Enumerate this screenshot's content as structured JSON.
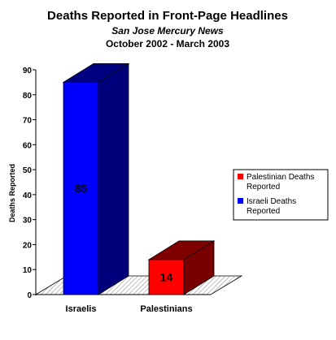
{
  "chart_data": {
    "type": "bar",
    "title": "Deaths Reported in Front-Page Headlines",
    "subtitle": "San Jose Mercury News",
    "date_range": "October 2002 - March 2003",
    "ylabel": "Deaths Reported",
    "xlabel": "",
    "ylim": [
      0,
      90
    ],
    "yticks": [
      0,
      10,
      20,
      30,
      40,
      50,
      60,
      70,
      80,
      90
    ],
    "categories": [
      "Israelis",
      "Palestinians"
    ],
    "values": [
      85,
      14
    ],
    "data_labels": [
      "85",
      "14"
    ],
    "bar_colors": [
      "#0000ff",
      "#ff0000"
    ],
    "legend": {
      "position": "right",
      "entries": [
        {
          "line1": "Palestinian Deaths",
          "line2": "Reported",
          "color": "#ff0000"
        },
        {
          "line1": "Israeli Deaths",
          "line2": "Reported",
          "color": "#0000ff"
        }
      ]
    },
    "style": "3d"
  }
}
